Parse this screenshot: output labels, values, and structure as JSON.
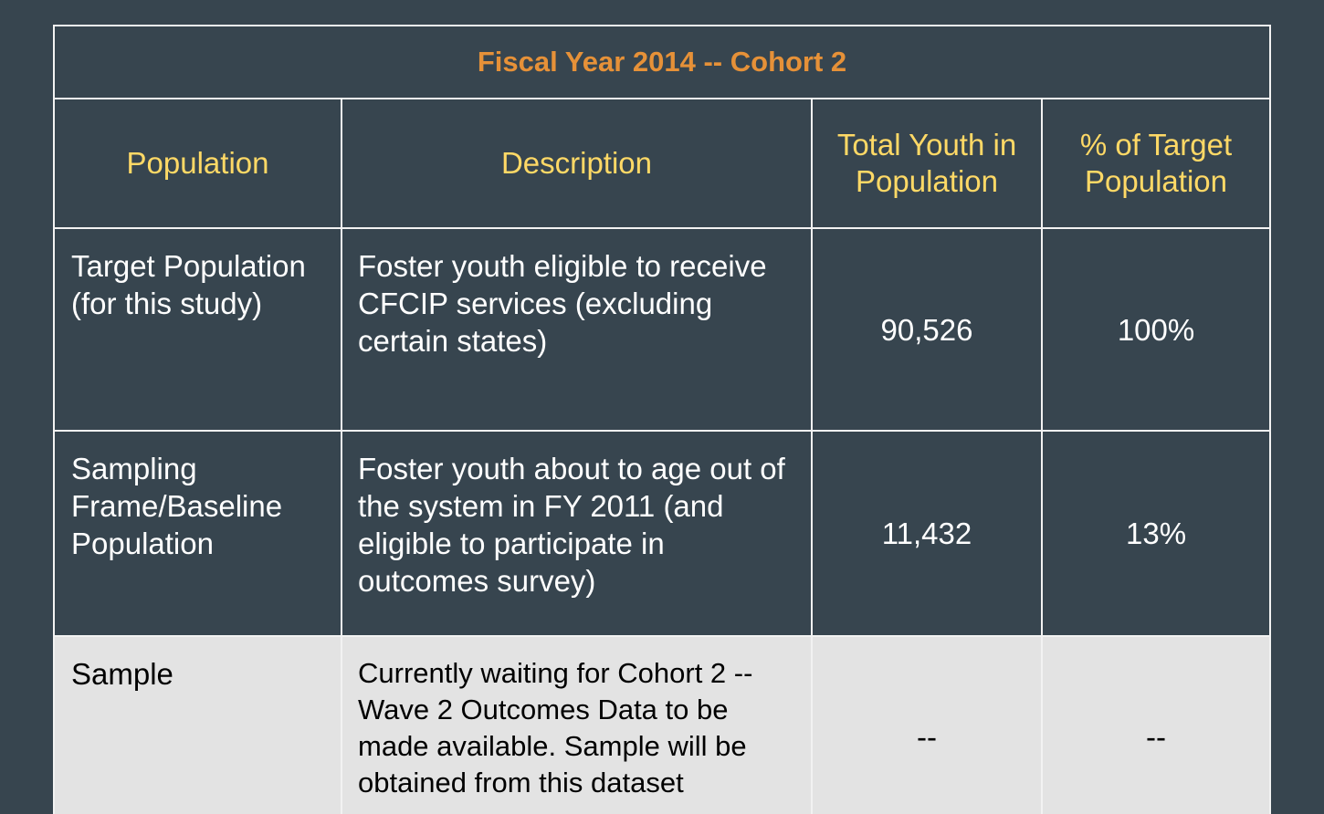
{
  "table": {
    "title": "Fiscal Year 2014 -- Cohort 2",
    "headers": {
      "population": "Population",
      "description": "Description",
      "total_youth": "Total Youth in Population",
      "pct_target": "% of Target Population"
    },
    "rows": [
      {
        "population": "Target Population (for this study)",
        "description": "Foster youth eligible to receive CFCIP services (excluding certain states)",
        "total_youth": "90,526",
        "pct_target": "100%"
      },
      {
        "population": "Sampling Frame/Baseline Population",
        "description": "Foster youth about to age out of the system in FY 2011 (and eligible to participate in outcomes survey)",
        "total_youth": "11,432",
        "pct_target": "13%"
      },
      {
        "population": "Sample",
        "description": "Currently waiting for Cohort 2 -- Wave 2 Outcomes Data to be made available. Sample will be obtained from  this dataset",
        "total_youth": "--",
        "pct_target": "--"
      }
    ]
  },
  "colors": {
    "background": "#37454f",
    "title": "#e69138",
    "header": "#ffd966",
    "body_text": "#ffffff",
    "highlight_row": "#e3e3e3",
    "border": "#f2f2f2"
  }
}
